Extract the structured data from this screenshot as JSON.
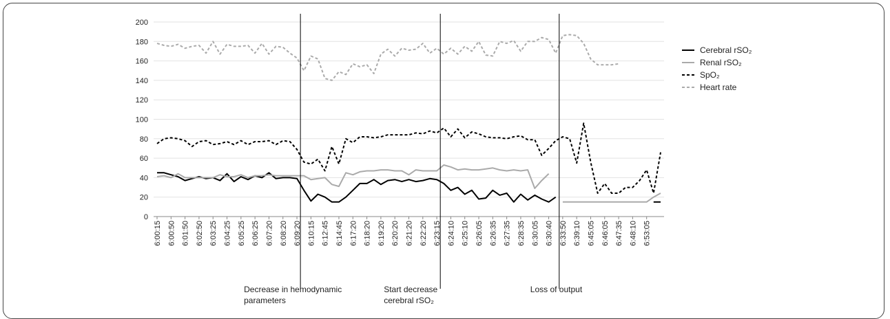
{
  "chart_data": {
    "type": "line",
    "ylim": [
      0,
      200
    ],
    "yticks": [
      0,
      20,
      40,
      60,
      80,
      100,
      120,
      140,
      160,
      180,
      200
    ],
    "xtick_labels": [
      "6:00:15",
      "6:00:50",
      "6:01:50",
      "6:02:50",
      "6:03:25",
      "6:04:25",
      "6:05:25",
      "6:06:25",
      "6:07:20",
      "6:08:20",
      "6:09:20",
      "6:10:15",
      "6:12:45",
      "6:14:45",
      "6:17:20",
      "6:18:20",
      "6:19:20",
      "6:20:20",
      "6:21:20",
      "6:22:20",
      "6:23:15",
      "6:24:10",
      "6:25:10",
      "6:26:05",
      "6:26:35",
      "6:27:35",
      "6:28:35",
      "6:30:05",
      "6:30:40",
      "6:33:50",
      "6:39:10",
      "6:45:05",
      "6:46:05",
      "6:47:35",
      "6:48:10",
      "6:53:05"
    ],
    "n_points": 73,
    "series": [
      {
        "name": "Cerebral rSO2",
        "values": [
          45,
          45,
          43,
          41,
          37,
          39,
          41,
          39,
          40,
          37,
          44,
          36,
          41,
          38,
          42,
          40,
          45,
          39,
          40,
          40,
          39,
          27,
          16,
          23,
          20,
          15,
          15,
          20,
          27,
          34,
          34,
          38,
          33,
          37,
          38,
          36,
          38,
          36,
          37,
          39,
          38,
          34,
          27,
          30,
          23,
          27,
          18,
          19,
          27,
          22,
          24,
          15,
          23,
          17,
          22,
          18,
          15,
          20,
          null,
          null,
          null,
          null,
          null,
          null,
          null,
          null,
          null,
          null,
          null,
          null,
          null,
          15,
          15
        ],
        "color": "#000000",
        "dash": "solid",
        "width": 2
      },
      {
        "name": "Renal rSO2",
        "values": [
          41,
          42,
          40,
          44,
          40,
          40,
          40,
          40,
          40,
          43,
          41,
          41,
          43,
          40,
          42,
          42,
          43,
          42,
          42,
          42,
          42,
          42,
          38,
          39,
          40,
          33,
          31,
          45,
          43,
          46,
          47,
          47,
          48,
          48,
          47,
          47,
          43,
          48,
          47,
          47,
          47,
          53,
          51,
          48,
          49,
          48,
          48,
          49,
          50,
          48,
          47,
          48,
          47,
          48,
          29,
          37,
          44,
          null,
          15,
          15,
          15,
          15,
          15,
          15,
          15,
          15,
          15,
          15,
          15,
          15,
          15,
          20,
          24
        ],
        "color": "#aaaaaa",
        "dash": "solid",
        "width": 2
      },
      {
        "name": "SpO2",
        "values": [
          75,
          80,
          81,
          80,
          78,
          72,
          77,
          78,
          74,
          75,
          77,
          74,
          78,
          74,
          77,
          77,
          78,
          74,
          78,
          77,
          69,
          56,
          54,
          59,
          47,
          72,
          54,
          80,
          76,
          82,
          82,
          81,
          82,
          84,
          84,
          84,
          84,
          86,
          85,
          88,
          86,
          91,
          82,
          90,
          81,
          87,
          85,
          82,
          81,
          81,
          80,
          82,
          83,
          79,
          79,
          63,
          70,
          78,
          82,
          80,
          55,
          96,
          56,
          24,
          34,
          24,
          24,
          30,
          30,
          37,
          48,
          24,
          66
        ],
        "color": "#000000",
        "dash": "4,3",
        "width": 2
      },
      {
        "name": "Heart rate",
        "values": [
          178,
          176,
          175,
          177,
          173,
          175,
          176,
          168,
          180,
          167,
          177,
          175,
          175,
          176,
          168,
          178,
          167,
          175,
          174,
          168,
          163,
          150,
          165,
          162,
          142,
          140,
          149,
          146,
          157,
          154,
          156,
          147,
          167,
          172,
          165,
          173,
          171,
          172,
          178,
          168,
          173,
          167,
          173,
          167,
          175,
          170,
          180,
          166,
          165,
          180,
          178,
          181,
          170,
          180,
          180,
          184,
          182,
          168,
          186,
          187,
          186,
          178,
          162,
          156,
          156,
          156,
          157,
          null,
          null,
          null,
          null,
          null,
          null
        ],
        "color": "#aaaaaa",
        "dash": "4,3",
        "width": 2
      }
    ],
    "vlines_at_index": [
      20.5,
      40.5,
      57.5
    ],
    "annotations": [
      {
        "lines": [
          "Decrease in hemodynamic",
          "parameters"
        ]
      },
      {
        "lines": [
          "Start decrease",
          "cerebral rSO₂"
        ]
      },
      {
        "lines": [
          "Loss of output"
        ]
      }
    ],
    "legend": {
      "placement": "right",
      "items": [
        {
          "label": "Cerebral rSO₂",
          "color": "#000000",
          "dash": "solid"
        },
        {
          "label": "Renal rSO₂",
          "color": "#aaaaaa",
          "dash": "solid"
        },
        {
          "label": "SpO₂",
          "color": "#000000",
          "dash": "dashed"
        },
        {
          "label": "Heart rate",
          "color": "#aaaaaa",
          "dash": "dashed"
        }
      ]
    }
  }
}
